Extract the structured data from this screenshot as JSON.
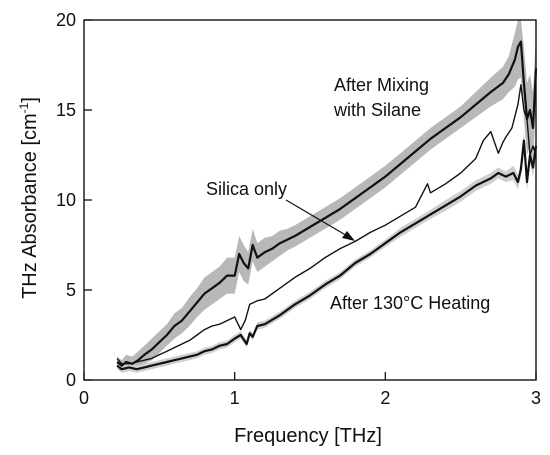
{
  "chart_data": {
    "type": "line",
    "xlabel": "Frequency [THz]",
    "ylabel_main": "THz Absorbance [cm",
    "ylabel_sup": "-1",
    "ylabel_end": "]",
    "xlim": [
      0,
      3
    ],
    "ylim": [
      0,
      20
    ],
    "xticks": [
      0,
      1,
      2,
      3
    ],
    "yticks": [
      0,
      5,
      10,
      15,
      20
    ],
    "grid": false,
    "legend": "none",
    "annotations": [
      {
        "text": "After Mixing"
      },
      {
        "text": "with Silane"
      },
      {
        "text": "Silica only"
      },
      {
        "text": "After 130°C Heating"
      }
    ],
    "series": [
      {
        "color": "#111111",
        "band_color": "#b8b8b8",
        "x": [
          0.22,
          0.25,
          0.28,
          0.32,
          0.36,
          0.4,
          0.45,
          0.5,
          0.55,
          0.6,
          0.65,
          0.7,
          0.75,
          0.8,
          0.85,
          0.9,
          0.95,
          1.0,
          1.03,
          1.06,
          1.09,
          1.12,
          1.15,
          1.2,
          1.25,
          1.3,
          1.35,
          1.4,
          1.5,
          1.6,
          1.7,
          1.8,
          1.9,
          2.0,
          2.1,
          2.2,
          2.3,
          2.4,
          2.5,
          2.6,
          2.7,
          2.78,
          2.82,
          2.86,
          2.88,
          2.9,
          2.92,
          2.94,
          2.96,
          2.98,
          3.0
        ],
        "y": [
          1.0,
          0.8,
          1.0,
          0.9,
          1.1,
          1.4,
          1.7,
          2.1,
          2.5,
          3.0,
          3.3,
          3.8,
          4.3,
          4.8,
          5.1,
          5.4,
          5.8,
          5.8,
          7.0,
          6.5,
          6.2,
          7.5,
          6.8,
          7.1,
          7.3,
          7.6,
          7.8,
          8.0,
          8.5,
          9.0,
          9.5,
          10.1,
          10.7,
          11.3,
          12.0,
          12.7,
          13.4,
          14.0,
          14.6,
          15.3,
          16.0,
          16.5,
          17.0,
          17.8,
          18.5,
          18.8,
          16.5,
          14.5,
          15.0,
          14.0,
          17.3
        ],
        "band": [
          0.3,
          0.3,
          0.4,
          0.4,
          0.5,
          0.5,
          0.6,
          0.6,
          0.6,
          0.7,
          0.7,
          0.8,
          0.8,
          0.9,
          0.9,
          0.9,
          1.0,
          1.0,
          1.0,
          1.0,
          0.9,
          0.9,
          0.8,
          0.8,
          0.7,
          0.7,
          0.6,
          0.6,
          0.6,
          0.6,
          0.6,
          0.6,
          0.6,
          0.6,
          0.6,
          0.6,
          0.6,
          0.6,
          0.6,
          0.7,
          0.8,
          0.9,
          1.0,
          1.5,
          1.8,
          2.0,
          2.0,
          2.0,
          2.0,
          2.0,
          2.0
        ]
      },
      {
        "color": "#111111",
        "x": [
          0.22,
          0.25,
          0.3,
          0.35,
          0.4,
          0.45,
          0.5,
          0.55,
          0.6,
          0.65,
          0.7,
          0.75,
          0.8,
          0.85,
          0.9,
          0.95,
          1.0,
          1.04,
          1.07,
          1.1,
          1.15,
          1.2,
          1.3,
          1.4,
          1.5,
          1.6,
          1.7,
          1.8,
          1.9,
          2.0,
          2.1,
          2.2,
          2.28,
          2.3,
          2.4,
          2.5,
          2.6,
          2.65,
          2.7,
          2.75,
          2.78,
          2.8,
          2.84,
          2.88,
          2.9,
          2.92,
          2.94,
          2.96,
          2.98,
          3.0
        ],
        "y": [
          1.2,
          0.9,
          0.9,
          1.0,
          1.1,
          1.2,
          1.4,
          1.6,
          1.8,
          2.0,
          2.2,
          2.5,
          2.8,
          3.0,
          3.1,
          3.3,
          3.5,
          2.8,
          3.3,
          4.2,
          4.4,
          4.5,
          5.1,
          5.7,
          6.2,
          6.8,
          7.3,
          7.7,
          8.2,
          8.6,
          9.1,
          9.6,
          10.9,
          10.4,
          10.9,
          11.5,
          12.3,
          13.3,
          13.8,
          12.6,
          13.2,
          13.5,
          14.0,
          15.3,
          16.4,
          15.0,
          14.5,
          12.5,
          13.0,
          12.5
        ]
      },
      {
        "color": "#111111",
        "band_color": "#cfcfcf",
        "x": [
          0.22,
          0.25,
          0.3,
          0.35,
          0.4,
          0.45,
          0.5,
          0.55,
          0.6,
          0.65,
          0.7,
          0.75,
          0.8,
          0.85,
          0.9,
          0.95,
          1.0,
          1.04,
          1.08,
          1.1,
          1.12,
          1.15,
          1.2,
          1.3,
          1.4,
          1.5,
          1.6,
          1.7,
          1.8,
          1.9,
          2.0,
          2.1,
          2.2,
          2.3,
          2.4,
          2.5,
          2.6,
          2.7,
          2.75,
          2.8,
          2.85,
          2.88,
          2.9,
          2.92,
          2.94,
          2.96,
          2.98,
          3.0
        ],
        "y": [
          0.8,
          0.6,
          0.7,
          0.6,
          0.7,
          0.8,
          0.9,
          1.0,
          1.1,
          1.2,
          1.3,
          1.4,
          1.6,
          1.7,
          1.9,
          2.0,
          2.3,
          2.5,
          2.0,
          2.6,
          2.4,
          3.0,
          3.1,
          3.6,
          4.2,
          4.7,
          5.3,
          5.8,
          6.5,
          7.0,
          7.6,
          8.2,
          8.7,
          9.2,
          9.7,
          10.2,
          10.8,
          11.2,
          11.5,
          11.3,
          11.5,
          11.0,
          11.7,
          13.3,
          11.0,
          12.5,
          11.8,
          13.0
        ],
        "band": [
          0.2,
          0.2,
          0.2,
          0.2,
          0.2,
          0.2,
          0.2,
          0.2,
          0.2,
          0.2,
          0.2,
          0.2,
          0.2,
          0.2,
          0.2,
          0.2,
          0.2,
          0.2,
          0.2,
          0.2,
          0.2,
          0.2,
          0.2,
          0.2,
          0.2,
          0.2,
          0.2,
          0.2,
          0.2,
          0.2,
          0.2,
          0.25,
          0.25,
          0.25,
          0.3,
          0.3,
          0.3,
          0.3,
          0.3,
          0.3,
          0.4,
          0.4,
          0.4,
          0.5,
          0.5,
          0.5,
          0.5,
          0.5
        ]
      }
    ]
  }
}
